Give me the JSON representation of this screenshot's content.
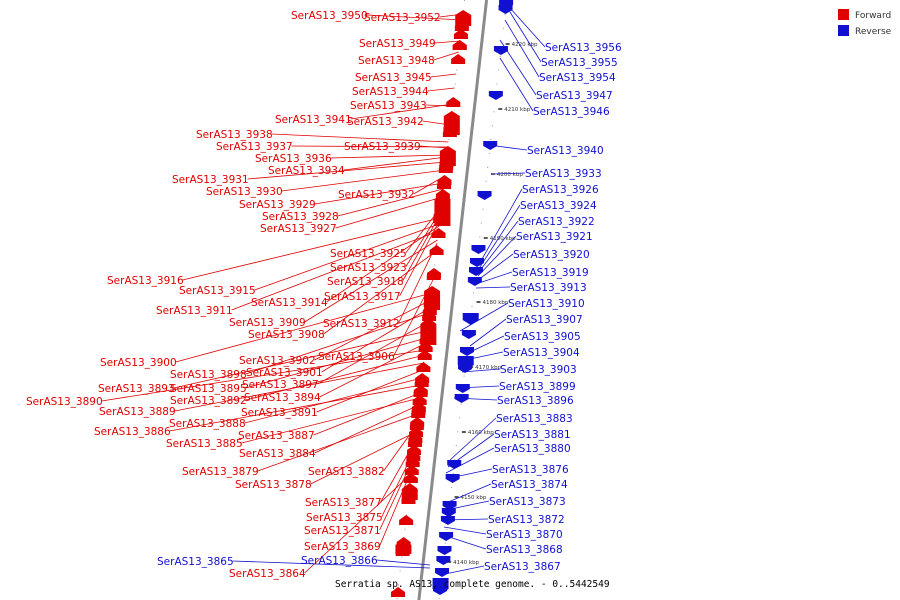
{
  "caption": "Serratia sp. AS13, complete genome. - 0..5442549",
  "colors": {
    "forward": "#e00000",
    "reverse": "#1010d0",
    "axis": "#888888"
  },
  "legend": [
    {
      "label": "Forward",
      "color": "#e00000"
    },
    {
      "label": "Reverse",
      "color": "#1010d0"
    }
  ],
  "scale_ticks": [
    "4220 kbp",
    "4210 kbp",
    "4200 kbp",
    "4190 kbp",
    "4180 kbp",
    "4170 kbp",
    "4160 kbp",
    "4150 kbp",
    "4140 kbp"
  ],
  "forward_genes": [
    "SerAS13_3950",
    "SerAS13_3952",
    "SerAS13_3949",
    "SerAS13_3948",
    "SerAS13_3945",
    "SerAS13_3944",
    "SerAS13_3943",
    "SerAS13_3941",
    "SerAS13_3942",
    "SerAS13_3938",
    "SerAS13_3937",
    "SerAS13_3939",
    "SerAS13_3936",
    "SerAS13_3934",
    "SerAS13_3931",
    "SerAS13_3930",
    "SerAS13_3932",
    "SerAS13_3929",
    "SerAS13_3928",
    "SerAS13_3927",
    "SerAS13_3925",
    "SerAS13_3923",
    "SerAS13_3916",
    "SerAS13_3918",
    "SerAS13_3915",
    "SerAS13_3917",
    "SerAS13_3914",
    "SerAS13_3911",
    "SerAS13_3909",
    "SerAS13_3912",
    "SerAS13_3908",
    "SerAS13_3906",
    "SerAS13_3900",
    "SerAS13_3902",
    "SerAS13_3901",
    "SerAS13_3898",
    "SerAS13_3897",
    "SerAS13_3893",
    "SerAS13_3895",
    "SerAS13_3894",
    "SerAS13_3890",
    "SerAS13_3892",
    "SerAS13_3889",
    "SerAS13_3891",
    "SerAS13_3888",
    "SerAS13_3886",
    "SerAS13_3887",
    "SerAS13_3885",
    "SerAS13_3884",
    "SerAS13_3879",
    "SerAS13_3882",
    "SerAS13_3878",
    "SerAS13_3877",
    "SerAS13_3875",
    "SerAS13_3871",
    "SerAS13_3869",
    "SerAS13_3864"
  ],
  "reverse_genes": [
    "SerAS13_3956",
    "SerAS13_3955",
    "SerAS13_3954",
    "SerAS13_3947",
    "SerAS13_3946",
    "SerAS13_3940",
    "SerAS13_3933",
    "SerAS13_3926",
    "SerAS13_3924",
    "SerAS13_3922",
    "SerAS13_3921",
    "SerAS13_3920",
    "SerAS13_3919",
    "SerAS13_3913",
    "SerAS13_3910",
    "SerAS13_3907",
    "SerAS13_3905",
    "SerAS13_3904",
    "SerAS13_3903",
    "SerAS13_3899",
    "SerAS13_3896",
    "SerAS13_3883",
    "SerAS13_3881",
    "SerAS13_3880",
    "SerAS13_3876",
    "SerAS13_3874",
    "SerAS13_3873",
    "SerAS13_3872",
    "SerAS13_3870",
    "SerAS13_3868",
    "SerAS13_3867",
    "SerAS13_3866",
    "SerAS13_3865"
  ]
}
